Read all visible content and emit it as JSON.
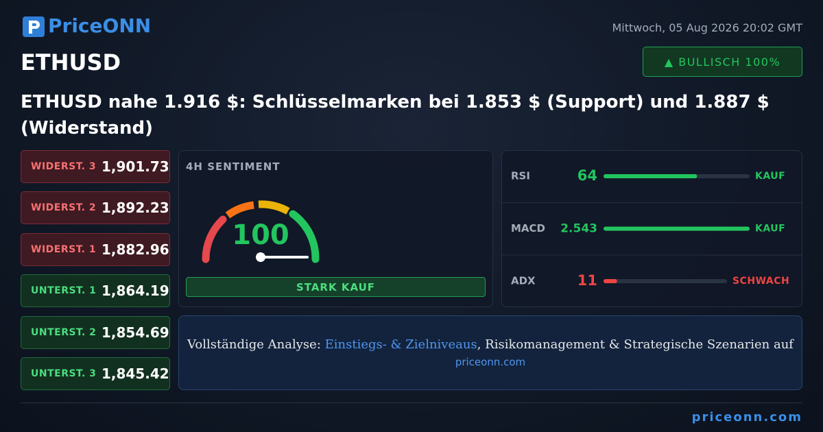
{
  "header": {
    "logo": "PriceONN",
    "date": "Mittwoch, 05 Aug 2026 20:02 GMT",
    "symbol": "ETHUSD",
    "badge": "▲ BULLISCH 100%",
    "headline": "ETHUSD nahe 1.916 $: Schlüsselmarken bei 1.853 $ (Support) und 1.887 $ (Widerstand)"
  },
  "resistances": [
    {
      "label": "WIDERST. 3",
      "value": "1,901.73"
    },
    {
      "label": "WIDERST. 2",
      "value": "1,892.23"
    },
    {
      "label": "WIDERST. 1",
      "value": "1,882.96"
    }
  ],
  "supports": [
    {
      "label": "UNTERST. 1",
      "value": "1,864.19"
    },
    {
      "label": "UNTERST. 2",
      "value": "1,854.69"
    },
    {
      "label": "UNTERST. 3",
      "value": "1,845.42"
    }
  ],
  "sentiment": {
    "title": "4H SENTIMENT",
    "value": 100,
    "signal": "STARK KAUF"
  },
  "indicators": [
    {
      "name": "RSI",
      "value": 64,
      "signal": "KAUF",
      "color": "#22c55e"
    },
    {
      "name": "MACD",
      "value": 2.543,
      "signal": "KAUF",
      "color": "#22c55e"
    },
    {
      "name": "ADX",
      "value": 11,
      "signal": "SCHWACH",
      "color": "#ef4444"
    }
  ],
  "cta": {
    "prefix": "Vollständige Analyse: ",
    "link": "Einstiegs- & Zielniveaus",
    "suffix": ", Risikomanagement & Strategische Szenarien auf",
    "url": "priceonn.com"
  },
  "footer": "priceonn.com"
}
